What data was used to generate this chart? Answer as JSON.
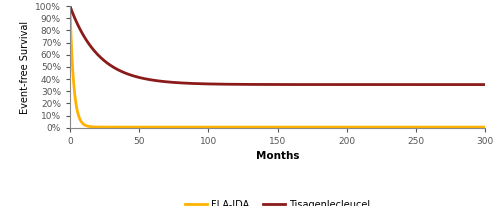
{
  "title": "",
  "xlabel": "Months",
  "ylabel": "Event-free Survival",
  "xlim": [
    0,
    300
  ],
  "ylim": [
    0,
    1.0
  ],
  "yticks": [
    0.0,
    0.1,
    0.2,
    0.3,
    0.4,
    0.5,
    0.6,
    0.7,
    0.8,
    0.9,
    1.0
  ],
  "xticks": [
    0,
    50,
    100,
    150,
    200,
    250,
    300
  ],
  "tisa_color": "#8B1A1A",
  "fla_color": "#FFB300",
  "tisa_label": "Tisagenlecleucel",
  "fla_label": "FLA-IDA",
  "background_color": "#FFFFFF",
  "tisa_plateau": 0.355,
  "tisa_decay_rate": 0.048,
  "fla_plateau": 0.005,
  "fla_decay_rate": 0.38
}
